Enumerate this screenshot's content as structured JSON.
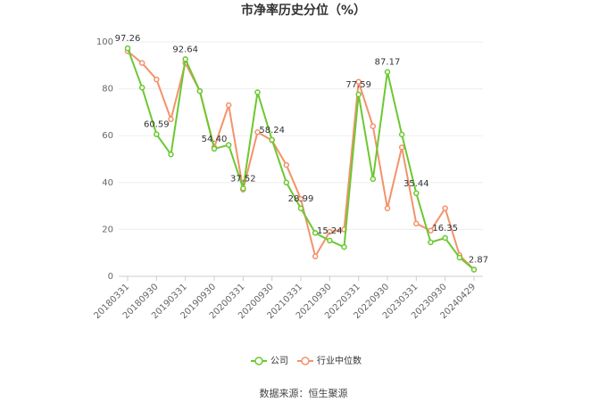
{
  "chart_data": {
    "type": "line",
    "title": "市净率历史分位（%）",
    "categories": [
      "20180331",
      null,
      "20180930",
      null,
      "20190331",
      null,
      "20190930",
      null,
      "20200331",
      null,
      "20200930",
      null,
      "20210331",
      null,
      "20210930",
      null,
      "20220331",
      null,
      "20220930",
      null,
      "20230331",
      null,
      "20230930",
      null,
      "20240429"
    ],
    "series": [
      {
        "name": "公司",
        "color": "#6cc832",
        "values": [
          97.26,
          80.5,
          60.59,
          52,
          92.64,
          79,
          54.4,
          56,
          37.52,
          78.5,
          58.24,
          40,
          28.99,
          18.5,
          15.24,
          12.5,
          77.59,
          41.5,
          87.17,
          60.5,
          35.44,
          14.5,
          16.35,
          8,
          2.87
        ],
        "value_labels": [
          "97.26",
          null,
          "60.59",
          null,
          "92.64",
          null,
          "54.40",
          null,
          "37.52",
          null,
          "58.24",
          null,
          "28.99",
          null,
          "15.24",
          null,
          "77.59",
          null,
          "87.17",
          null,
          "35.44",
          null,
          "16.35",
          null,
          "2.87"
        ]
      },
      {
        "name": "行业中位数",
        "color": "#f4926b",
        "values": [
          96,
          91,
          84,
          67,
          91,
          79,
          55,
          73,
          37,
          61.5,
          58,
          47.5,
          33,
          8.5,
          19,
          20,
          83,
          64,
          29,
          55,
          22.5,
          19.5,
          29,
          9,
          2.87
        ]
      }
    ],
    "ylim": [
      0,
      100
    ],
    "yticks": [
      0,
      20,
      40,
      60,
      80,
      100
    ],
    "grid": true,
    "legend": "bottom",
    "source": "数据来源：恒生聚源"
  }
}
